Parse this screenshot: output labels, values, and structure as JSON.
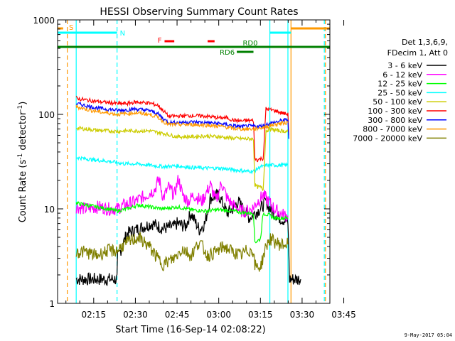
{
  "chart_data": {
    "type": "line",
    "title": "HESSI Observing Summary Count Rates",
    "xlabel": "Start Time (16-Sep-14 02:08:22)",
    "ylabel_main": "Count Rate (s",
    "ylabel_sup1": "-1",
    "ylabel_mid": " detector",
    "ylabel_sup2": "-1",
    "ylabel_end": ")",
    "y_scale": "log",
    "ylim": [
      1,
      1000
    ],
    "xlim_minutes": [
      2.0,
      100.0
    ],
    "x_ticks": [
      {
        "label": "02:15",
        "min": 15
      },
      {
        "label": "02:30",
        "min": 30
      },
      {
        "label": "02:45",
        "min": 45
      },
      {
        "label": "03:00",
        "min": 60
      },
      {
        "label": "03:15",
        "min": 75
      },
      {
        "label": "03:30",
        "min": 90
      },
      {
        "label": "03:45",
        "min": 105
      }
    ],
    "y_ticks": [
      {
        "label": "1",
        "value": 1
      },
      {
        "label": "10",
        "value": 10
      },
      {
        "label": "100",
        "value": 100
      },
      {
        "label": "1000",
        "value": 1000
      }
    ],
    "legend_header": [
      "Det 1,3,6,9,",
      "FDecim 1, Att 0"
    ],
    "legend_placement": "right",
    "footer_date": "9-May-2017 05:04",
    "series": [
      {
        "name": "3 - 6 keV",
        "color": "#000000",
        "x": [
          8.7,
          12,
          17,
          20,
          23.4,
          23.6,
          27,
          33,
          36,
          40,
          44,
          45,
          48,
          50,
          53,
          55,
          57,
          60,
          63,
          65,
          67,
          71,
          73,
          75,
          77,
          78.4,
          80,
          82,
          84,
          84.9,
          85.5,
          88,
          89.5
        ],
        "y": [
          1.8,
          1.8,
          1.8,
          1.8,
          1.8,
          3,
          5.5,
          6.5,
          7,
          6.2,
          6.5,
          7,
          6.5,
          9,
          6,
          7,
          13,
          14,
          9,
          10,
          12,
          8,
          9,
          10,
          12,
          10,
          9,
          8,
          7.5,
          7.2,
          1.8,
          1.8,
          1.8
        ]
      },
      {
        "name": "6 - 12 keV",
        "color": "#ff00ff",
        "x": [
          8.7,
          12,
          17,
          20,
          23.4,
          26,
          30,
          34,
          37,
          38.5,
          40,
          42,
          44,
          45.5,
          47,
          49,
          51,
          54,
          57,
          59,
          61,
          63,
          65,
          68,
          70,
          72,
          74,
          76,
          78,
          80,
          82,
          84,
          84.9
        ],
        "y": [
          10.5,
          10,
          10.5,
          10,
          10,
          11,
          12,
          14,
          16,
          21,
          13,
          17,
          14,
          21,
          14,
          12,
          14,
          12,
          18,
          12,
          19,
          13,
          11,
          9.5,
          9.5,
          10,
          12,
          14,
          12,
          10,
          9,
          8.5,
          8.5
        ]
      },
      {
        "name": "12 - 25 keV",
        "color": "#00ff00",
        "x": [
          8.7,
          12,
          16,
          20,
          23.4,
          27,
          31,
          35,
          40,
          45,
          50,
          55,
          60,
          65,
          68,
          71,
          72.5,
          73,
          73.5,
          75,
          76,
          78.4,
          80,
          83,
          84.9
        ],
        "y": [
          11.5,
          11,
          10.5,
          10,
          9.5,
          10,
          11,
          10.5,
          10,
          10.5,
          9.8,
          9.5,
          9.8,
          9.5,
          9.2,
          9,
          9,
          4.5,
          4.5,
          4.8,
          9,
          8.5,
          8,
          8,
          8
        ]
      },
      {
        "name": "25 - 50 keV",
        "color": "#00ffff",
        "x": [
          8.7,
          12,
          15,
          20,
          23.4,
          26,
          30,
          35,
          40,
          45,
          50,
          55,
          60,
          65,
          70,
          72.5,
          73,
          75,
          76.5,
          77,
          80,
          84.9
        ],
        "y": [
          35,
          34,
          33,
          32,
          31,
          30,
          30,
          29,
          28,
          28.5,
          27.5,
          27,
          27,
          26,
          25,
          25,
          25.5,
          28,
          28,
          29,
          29,
          29
        ]
      },
      {
        "name": "50 - 100 keV",
        "color": "#cccc00",
        "x": [
          8.7,
          12,
          16,
          20,
          23.4,
          27,
          30,
          35,
          40,
          45,
          50,
          55,
          60,
          65,
          70,
          72.5,
          73,
          74,
          75,
          76,
          77,
          78.4,
          80,
          84.9
        ],
        "y": [
          72,
          70,
          68,
          67,
          66,
          67,
          67,
          67,
          63,
          58,
          58,
          59,
          58,
          56,
          55,
          55,
          18,
          17,
          17,
          16,
          67,
          70,
          68,
          66
        ]
      },
      {
        "name": "100 - 300 keV",
        "color": "#ff0000",
        "x": [
          8.7,
          10,
          14,
          18,
          22,
          23.4,
          27,
          30,
          35,
          38,
          40,
          42,
          45,
          50,
          55,
          60,
          63,
          65,
          68,
          70,
          72.5,
          73,
          74,
          75,
          76,
          77,
          78.4,
          80,
          82,
          84.9,
          85.2
        ],
        "y": [
          150,
          145,
          140,
          135,
          132,
          130,
          130,
          135,
          132,
          125,
          110,
          95,
          96,
          97,
          96,
          92,
          92,
          87,
          85,
          86,
          86,
          34,
          33,
          34,
          34,
          115,
          112,
          110,
          105,
          100,
          60
        ]
      },
      {
        "name": "300 - 800 keV",
        "color": "#0000ff",
        "x": [
          8.7,
          10,
          14,
          18,
          22,
          23.4,
          27,
          30,
          35,
          38,
          40,
          42,
          45,
          50,
          55,
          60,
          63,
          65,
          68,
          70,
          72.5,
          73,
          75,
          77,
          78.4,
          80,
          82,
          84.9,
          85.2
        ],
        "y": [
          130,
          128,
          120,
          115,
          112,
          110,
          112,
          114,
          110,
          102,
          90,
          82,
          82,
          83,
          82,
          80,
          78,
          76,
          74,
          75,
          75,
          75,
          75,
          78,
          80,
          82,
          85,
          88,
          55
        ]
      },
      {
        "name": "800 - 7000 keV",
        "color": "#ff9900",
        "x": [
          8.7,
          10,
          14,
          18,
          22,
          23.4,
          27,
          30,
          35,
          38,
          40,
          42,
          45,
          50,
          55,
          60,
          63,
          65,
          68,
          70,
          72.5,
          73,
          75,
          77,
          78.4,
          80,
          82,
          84.9
        ],
        "y": [
          120,
          118,
          110,
          105,
          102,
          100,
          102,
          104,
          100,
          94,
          84,
          78,
          78,
          78,
          77,
          75,
          73,
          71,
          70,
          70,
          70,
          70,
          72,
          74,
          76,
          78,
          80,
          82
        ]
      },
      {
        "name": "7000 - 20000 keV",
        "color": "#808000",
        "x": [
          8.7,
          12,
          16,
          20,
          23.4,
          25,
          28,
          31,
          35,
          38,
          40,
          44,
          47,
          50,
          53,
          56,
          59,
          62,
          65,
          68,
          70,
          72.5,
          73,
          75,
          77,
          78.4,
          80,
          82,
          84.9
        ],
        "y": [
          3.5,
          3.5,
          3.2,
          3.6,
          3.6,
          4,
          4.5,
          5,
          4,
          3,
          2.6,
          3,
          3.8,
          3.2,
          4.5,
          3.2,
          3.5,
          4,
          3.5,
          3.2,
          3.6,
          3.6,
          2.5,
          2.4,
          4,
          4.8,
          4.5,
          4.2,
          4.2
        ]
      }
    ],
    "state_bars": [
      {
        "label": "S",
        "color": "#ff9900",
        "start_min": 2,
        "end_min": 4
      },
      {
        "label": "S",
        "color": "#ff9900",
        "start_min": 86,
        "end_min": 100
      },
      {
        "label": "N",
        "color": "#00ffff",
        "start_min": 2,
        "end_min": 23.4
      },
      {
        "label": "N",
        "color": "#00ffff",
        "start_min": 78.4,
        "end_min": 86
      },
      {
        "label": "F",
        "color": "#ff0000",
        "start_min": 40.5,
        "end_min": 44
      },
      {
        "label": "F",
        "color": "#ff0000",
        "start_min": 56,
        "end_min": 58.5
      },
      {
        "label": "RD0",
        "color": "#008000",
        "start_min": 2,
        "end_min": 100
      },
      {
        "label": "RD6",
        "color": "#008000",
        "start_min": 66.5,
        "end_min": 72.5
      }
    ],
    "vlines": [
      {
        "min": 8.7,
        "color": "#00ffff",
        "style": "solid"
      },
      {
        "min": 5.5,
        "color": "#ff9900",
        "style": "dash"
      },
      {
        "min": 23.4,
        "color": "#00ffff",
        "style": "dash"
      },
      {
        "min": 78.4,
        "color": "#00ffff",
        "style": "solid"
      },
      {
        "min": 84.9,
        "color": "#00ffff",
        "style": "solid"
      },
      {
        "min": 86,
        "color": "#ff9900",
        "style": "solid"
      },
      {
        "min": 98,
        "color": "#00ffff",
        "style": "dash"
      },
      {
        "min": 98.4,
        "color": "#ff9900",
        "style": "dash"
      }
    ]
  }
}
